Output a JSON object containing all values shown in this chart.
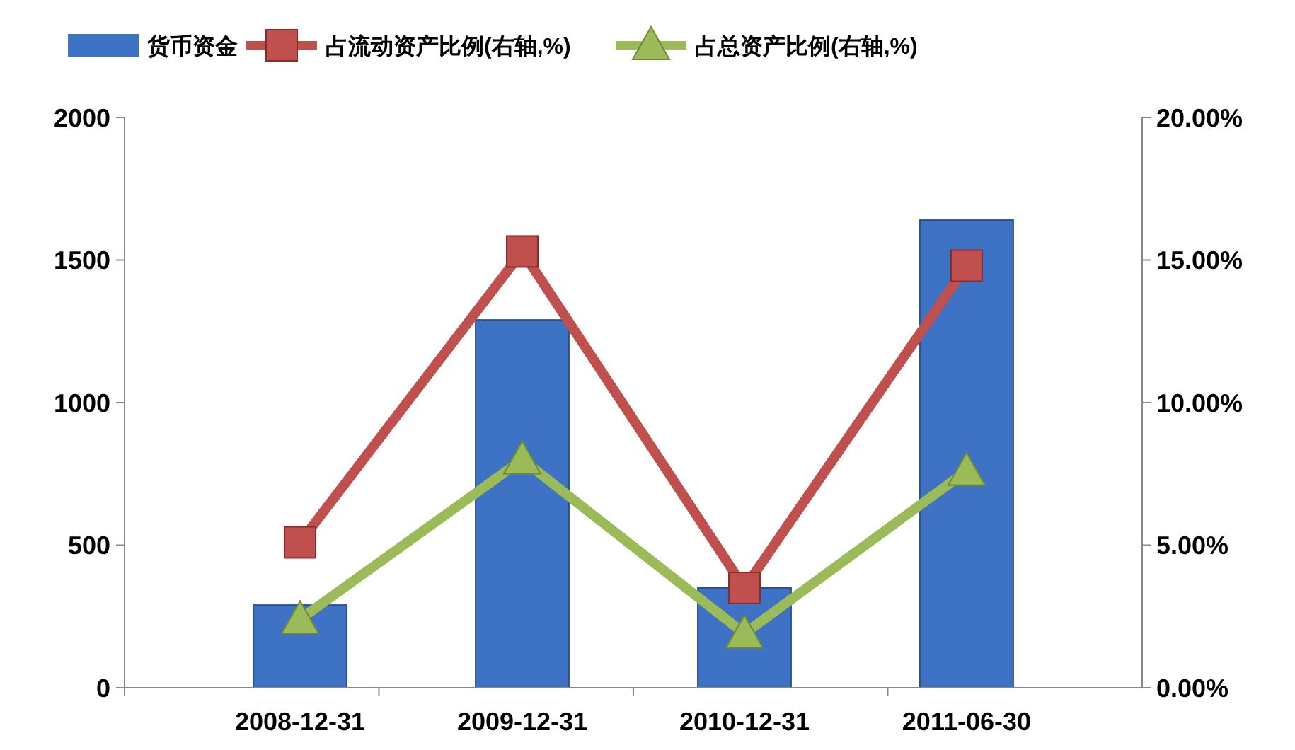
{
  "chart_data": {
    "type": "bar",
    "categories": [
      "2008-12-31",
      "2009-12-31",
      "2010-12-31",
      "2011-06-30"
    ],
    "series": [
      {
        "name": "货币资金",
        "color": "#3d72c4",
        "values": [
          290,
          1290,
          350,
          1640
        ]
      },
      {
        "name": "占流动资产比例(右轴,%)",
        "type": "line",
        "axis": "y2",
        "color": "#c0504d",
        "marker": "square",
        "values": [
          5.1,
          15.3,
          3.5,
          14.8
        ]
      },
      {
        "name": "占总资产比例(右轴,%)",
        "type": "line",
        "axis": "y2",
        "color": "#9bbb59",
        "marker": "triangle",
        "values": [
          2.4,
          8.0,
          1.9,
          7.6
        ]
      }
    ],
    "ylim": [
      0,
      2000
    ],
    "yticks": [
      0,
      500,
      1000,
      1500,
      2000
    ],
    "y2lim": [
      0,
      20
    ],
    "y2ticks": [
      {
        "value": 0,
        "label": "0.00%"
      },
      {
        "value": 5,
        "label": "5.00%"
      },
      {
        "value": 10,
        "label": "10.00%"
      },
      {
        "value": 15,
        "label": "15.00%"
      },
      {
        "value": 20,
        "label": "20.00%"
      }
    ],
    "grid": false,
    "legend": "top"
  }
}
